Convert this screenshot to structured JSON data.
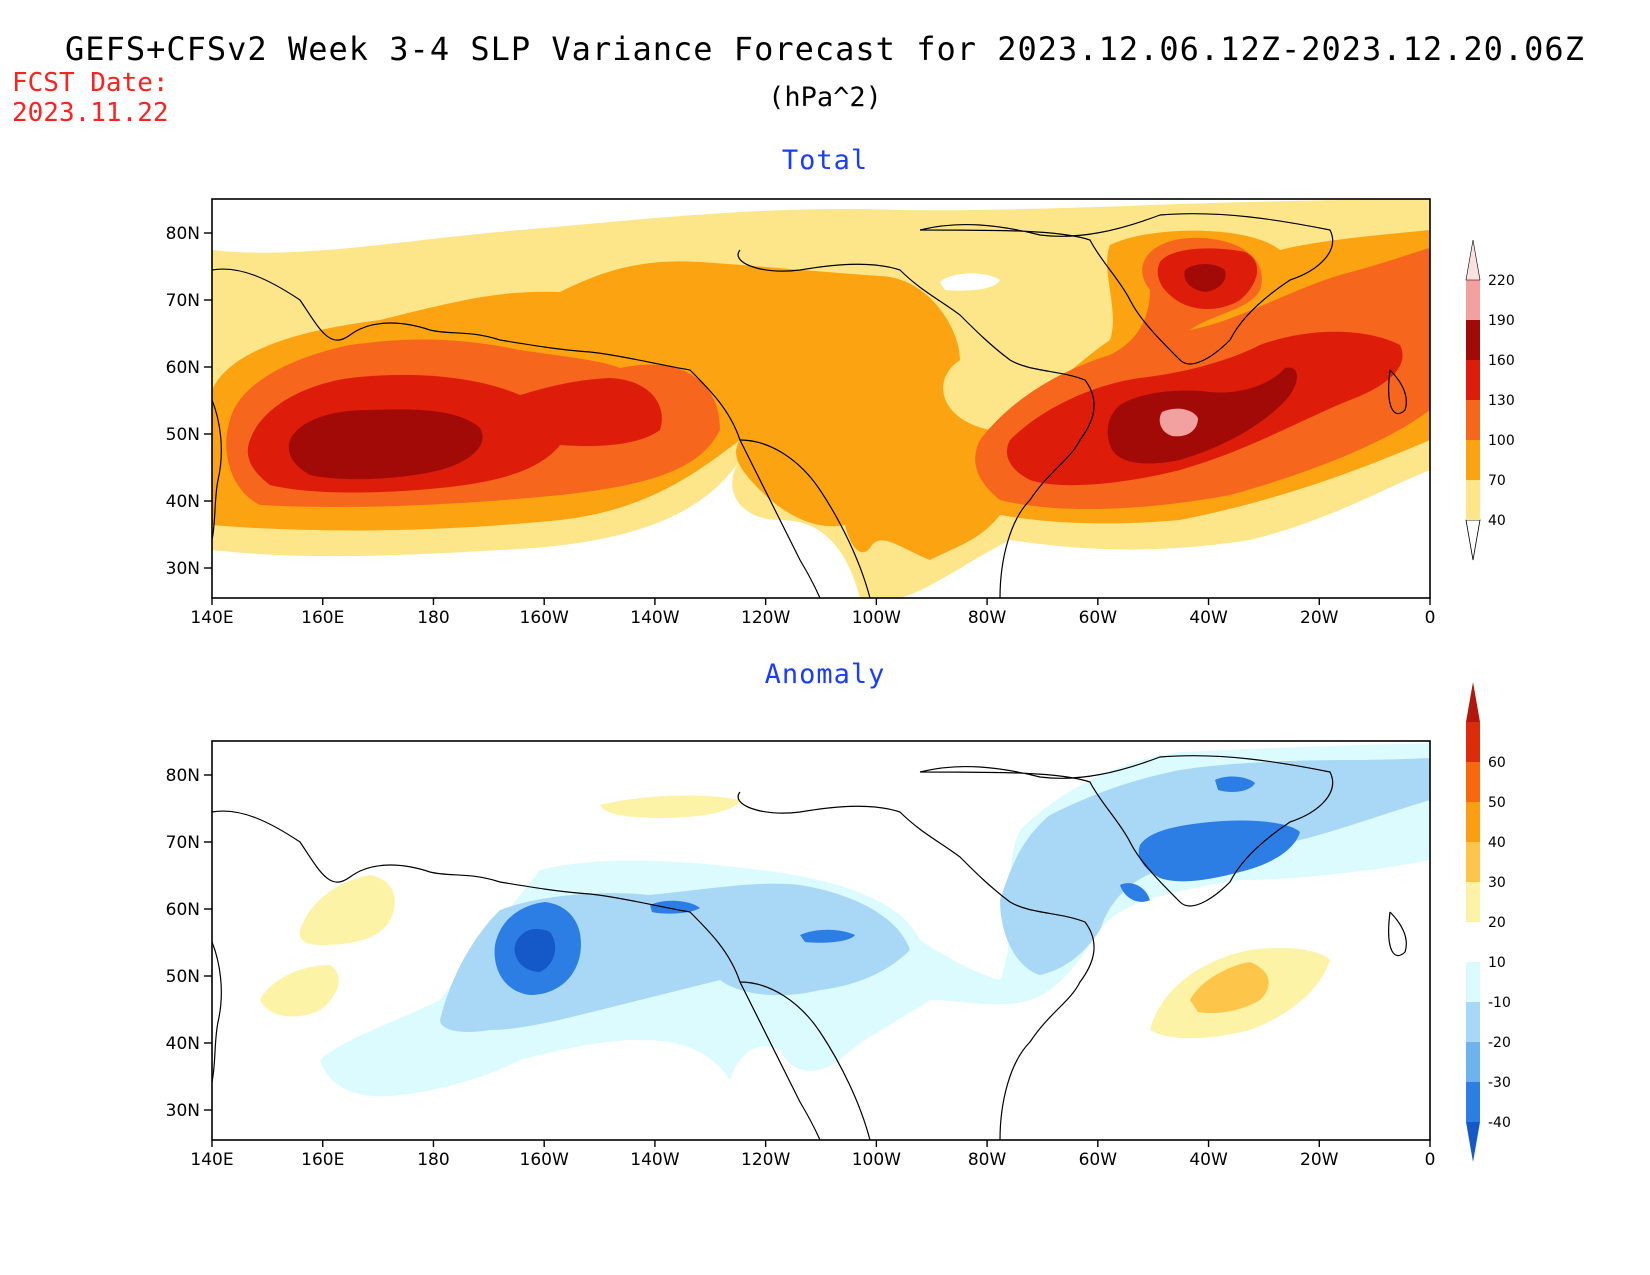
{
  "header": {
    "title": "GEFS+CFSv2 Week 3-4 SLP Variance Forecast for 2023.12.06.12Z-2023.12.20.06Z",
    "units": "(hPa^2)",
    "fcst_label": "FCST Date:",
    "fcst_date": "2023.11.22"
  },
  "map": {
    "lat_ticks": [
      "80N",
      "70N",
      "60N",
      "50N",
      "40N",
      "30N"
    ],
    "lon_ticks": [
      "140E",
      "160E",
      "180",
      "160W",
      "140W",
      "120W",
      "100W",
      "80W",
      "60W",
      "40W",
      "20W",
      "0"
    ]
  },
  "panels": [
    {
      "title": "Total",
      "colorbar": {
        "labels": [
          "40",
          "70",
          "100",
          "130",
          "160",
          "190",
          "220"
        ],
        "colors": [
          "#fde68a",
          "#fca311",
          "#f7661d",
          "#dd1d0a",
          "#a10a06",
          "#f2a0a0",
          "#fde0e0"
        ]
      }
    },
    {
      "title": "Anomaly",
      "colorbar": {
        "labels": [
          "60",
          "50",
          "40",
          "30",
          "20",
          "10",
          "-10",
          "-20",
          "-30",
          "-40"
        ],
        "colors": [
          "#b2160d",
          "#dd2c0c",
          "#f9680f",
          "#fc9e12",
          "#fdc64a",
          "#fdf3a6",
          "#ffffff",
          "#dcfbff",
          "#a8d8f5",
          "#6eb2ee",
          "#2d7ee4",
          "#1559c9"
        ]
      }
    }
  ]
}
